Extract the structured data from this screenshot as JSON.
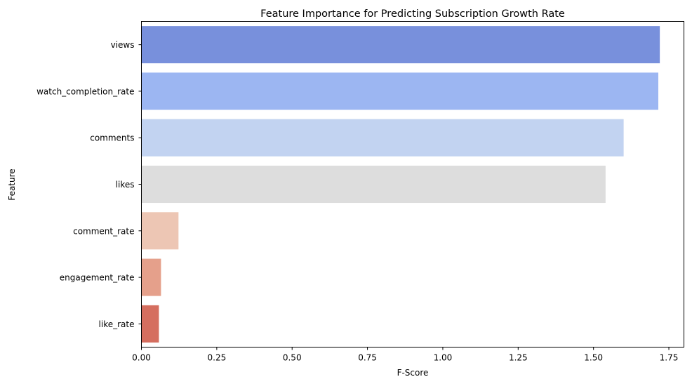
{
  "chart_data": {
    "type": "bar",
    "orientation": "horizontal",
    "title": "Feature Importance for Predicting Subscription Growth Rate",
    "xlabel": "F-Score",
    "ylabel": "Feature",
    "xlim": [
      0,
      1.8
    ],
    "xticks": [
      0.0,
      0.25,
      0.5,
      0.75,
      1.0,
      1.25,
      1.5,
      1.75
    ],
    "xtick_labels": [
      "0.00",
      "0.25",
      "0.50",
      "0.75",
      "1.00",
      "1.25",
      "1.50",
      "1.75"
    ],
    "grid": false,
    "categories": [
      "views",
      "watch_completion_rate",
      "comments",
      "likes",
      "comment_rate",
      "engagement_rate",
      "like_rate"
    ],
    "values": [
      1.72,
      1.715,
      1.6,
      1.54,
      0.123,
      0.065,
      0.058
    ],
    "colors": [
      "#7890dc",
      "#9cb6f2",
      "#c2d3f1",
      "#dddddd",
      "#edc6b4",
      "#e5a08b",
      "#d56e5f"
    ]
  }
}
